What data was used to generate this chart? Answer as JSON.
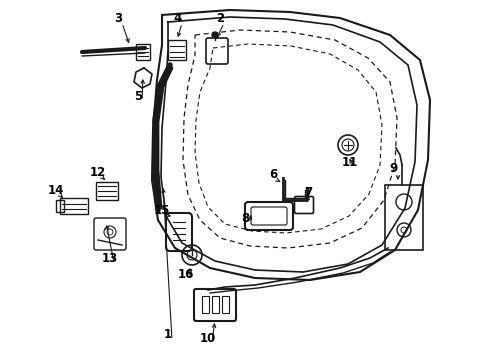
{
  "bg_color": "#ffffff",
  "line_color": "#1a1a1a",
  "label_color": "#000000",
  "fig_w": 4.89,
  "fig_h": 3.6,
  "dpi": 100
}
